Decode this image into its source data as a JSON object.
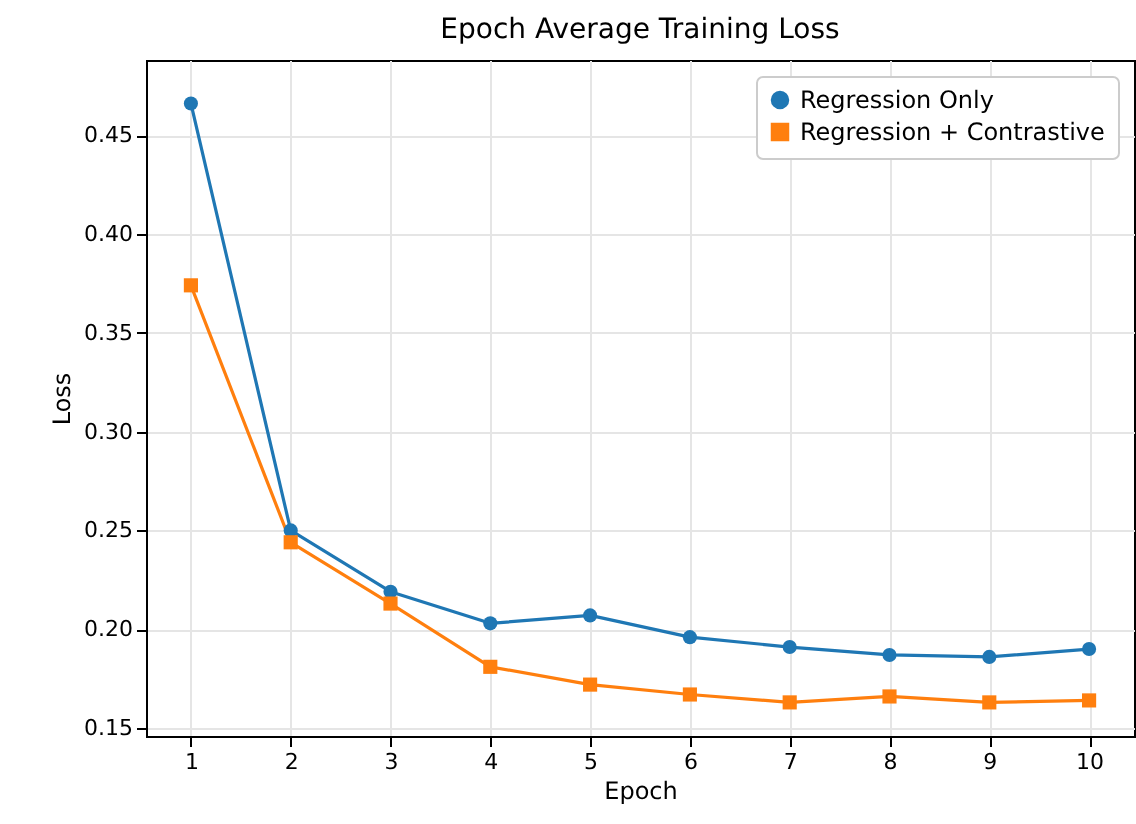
{
  "chart_data": {
    "type": "line",
    "title": "Epoch Average Training Loss",
    "xlabel": "Epoch",
    "ylabel": "Loss",
    "x": [
      1,
      2,
      3,
      4,
      5,
      6,
      7,
      8,
      9,
      10
    ],
    "series": [
      {
        "name": "Regression Only",
        "color": "#1f77b4",
        "marker": "circle",
        "values": [
          0.466,
          0.25,
          0.219,
          0.203,
          0.207,
          0.196,
          0.191,
          0.187,
          0.186,
          0.19
        ]
      },
      {
        "name": "Regression + Contrastive",
        "color": "#ff7f0e",
        "marker": "square",
        "values": [
          0.374,
          0.244,
          0.213,
          0.181,
          0.172,
          0.167,
          0.163,
          0.166,
          0.163,
          0.164
        ]
      }
    ],
    "xlim": [
      0.55,
      10.45
    ],
    "xticks": [
      1,
      2,
      3,
      4,
      5,
      6,
      7,
      8,
      9,
      10
    ],
    "ylim": [
      0.146,
      0.488
    ],
    "yticks": [
      0.15,
      {
        "value": 0.2,
        "label": "0.20"
      },
      0.25,
      {
        "value": 0.3,
        "label": "0.30"
      },
      0.35,
      {
        "value": 0.4,
        "label": "0.40"
      },
      0.45
    ],
    "grid": true,
    "legend": "top right",
    "line_style": "solid"
  }
}
